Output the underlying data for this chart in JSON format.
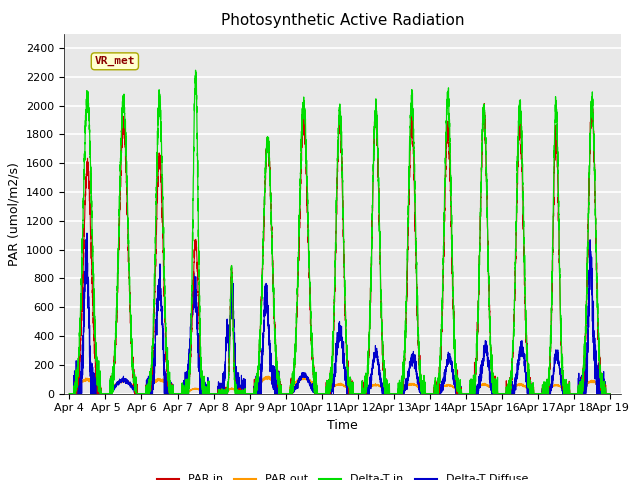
{
  "title": "Photosynthetic Active Radiation",
  "ylabel": "PAR (umol/m2/s)",
  "xlabel": "Time",
  "annotation": "VR_met",
  "ylim": [
    0,
    2500
  ],
  "xlim_start": 3.85,
  "xlim_end": 19.3,
  "xtick_positions": [
    4,
    5,
    6,
    7,
    8,
    9,
    10,
    11,
    12,
    13,
    14,
    15,
    16,
    17,
    18,
    19
  ],
  "xtick_labels": [
    "Apr 4",
    "Apr 5",
    "Apr 6",
    "Apr 7",
    "Apr 8",
    "Apr 9",
    "Apr 10",
    "Apr 11",
    "Apr 12",
    "Apr 13",
    "Apr 14",
    "Apr 15",
    "Apr 16",
    "Apr 17",
    "Apr 18",
    "Apr 19"
  ],
  "fig_background": "#ffffff",
  "plot_background": "#e8e8e8",
  "grid_color": "#ffffff",
  "colors": {
    "par_in": "#cc0000",
    "par_out": "#ff9900",
    "delta_t_in": "#00dd00",
    "delta_t_diffuse": "#0000cc"
  },
  "title_fontsize": 11,
  "axis_fontsize": 9,
  "tick_fontsize": 8
}
